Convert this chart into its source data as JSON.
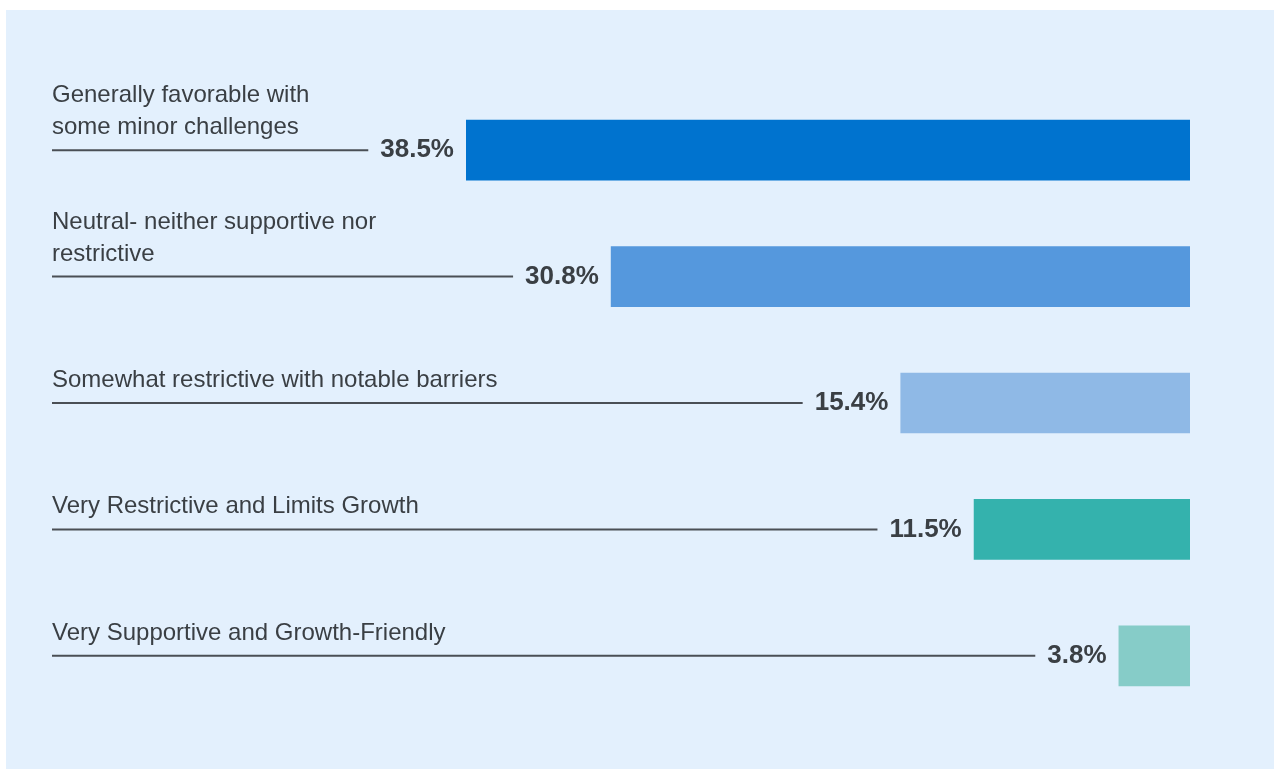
{
  "chart_data": {
    "type": "bar",
    "orientation": "horizontal",
    "categories": [
      "Generally favorable with some minor challenges",
      "Neutral- neither supportive nor restrictive",
      "Somewhat restrictive with notable barriers",
      "Very Restrictive and Limits Growth",
      "Very Supportive and Growth-Friendly"
    ],
    "values": [
      38.5,
      30.8,
      15.4,
      11.5,
      3.8
    ],
    "value_labels": [
      "38.5%",
      "30.8%",
      "15.4%",
      "11.5%",
      "3.8%"
    ],
    "colors": [
      "#0073cf",
      "#5598dd",
      "#8fb9e6",
      "#34b2ad",
      "#86ccc8"
    ],
    "legend": false
  }
}
